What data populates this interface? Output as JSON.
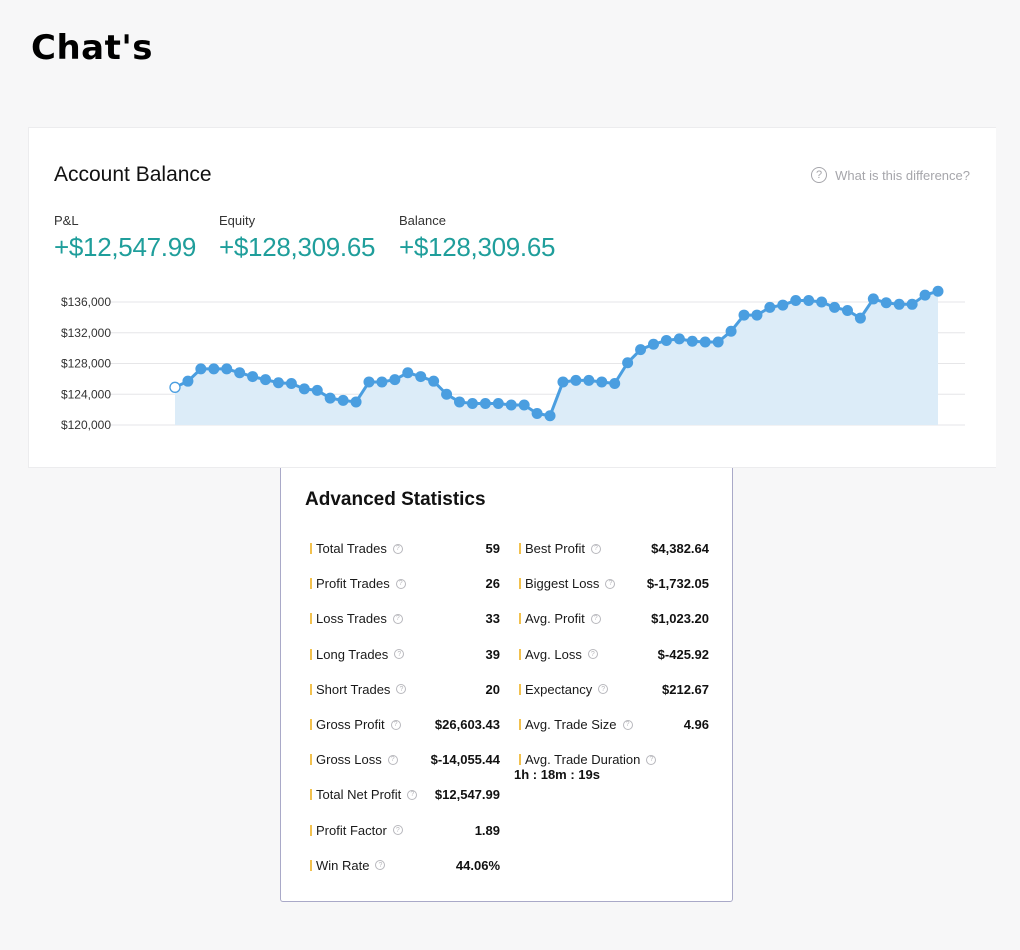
{
  "page_title": "Chat's",
  "account": {
    "title": "Account Balance",
    "help_text": "What is this difference?",
    "help_icon_glyph": "?",
    "metrics": [
      {
        "label": "P&L",
        "value": "+$12,547.99"
      },
      {
        "label": "Equity",
        "value": "+$128,309.65"
      },
      {
        "label": "Balance",
        "value": "+$128,309.65"
      }
    ],
    "accent_color": "#1f9e9b"
  },
  "chart_data": {
    "type": "area",
    "series": [
      {
        "values": [
          124900,
          125700,
          127300,
          127300,
          127300,
          126800,
          126300,
          125900,
          125500,
          125400,
          124700,
          124500,
          123500,
          123200,
          123000,
          125600,
          125600,
          125900,
          126800,
          126300,
          125700,
          124000,
          123000,
          122800,
          122800,
          122800,
          122600,
          122600,
          121500,
          121200,
          125600,
          125800,
          125800,
          125600,
          125400,
          128100,
          129800,
          130500,
          131000,
          131200,
          130900,
          130800,
          130800,
          132200,
          134300,
          134300,
          135300,
          135600,
          136200,
          136200,
          136000,
          135300,
          134900,
          133900,
          136400,
          135900,
          135700,
          135700,
          136900,
          137400
        ]
      }
    ],
    "yticks": [
      "$136,000",
      "$132,000",
      "$128,000",
      "$124,000",
      "$120,000"
    ],
    "ylim": [
      120000,
      136000
    ],
    "grid": true,
    "line_color": "#4a9ee0",
    "fill_color": "#dcecf8"
  },
  "stats": {
    "title": "Advanced Statistics",
    "help_glyph": "?",
    "left": [
      {
        "label": "Total Trades",
        "value": "59"
      },
      {
        "label": "Profit Trades",
        "value": "26"
      },
      {
        "label": "Loss Trades",
        "value": "33"
      },
      {
        "label": "Long Trades",
        "value": "39"
      },
      {
        "label": "Short Trades",
        "value": "20"
      },
      {
        "label": "Gross Profit",
        "value": "$26,603.43"
      },
      {
        "label": "Gross Loss",
        "value": "$-14,055.44"
      },
      {
        "label": "Total Net Profit",
        "value": "$12,547.99"
      },
      {
        "label": "Profit Factor",
        "value": "1.89"
      },
      {
        "label": "Win Rate",
        "value": "44.06%"
      }
    ],
    "right": [
      {
        "label": "Best Profit",
        "value": "$4,382.64"
      },
      {
        "label": "Biggest Loss",
        "value": "$-1,732.05"
      },
      {
        "label": "Avg. Profit",
        "value": "$1,023.20"
      },
      {
        "label": "Avg. Loss",
        "value": "$-425.92"
      },
      {
        "label": "Expectancy",
        "value": "$212.67"
      },
      {
        "label": "Avg. Trade Size",
        "value": "4.96"
      }
    ],
    "duration": {
      "label": "Avg. Trade Duration",
      "value": "1h : 18m : 19s"
    }
  }
}
